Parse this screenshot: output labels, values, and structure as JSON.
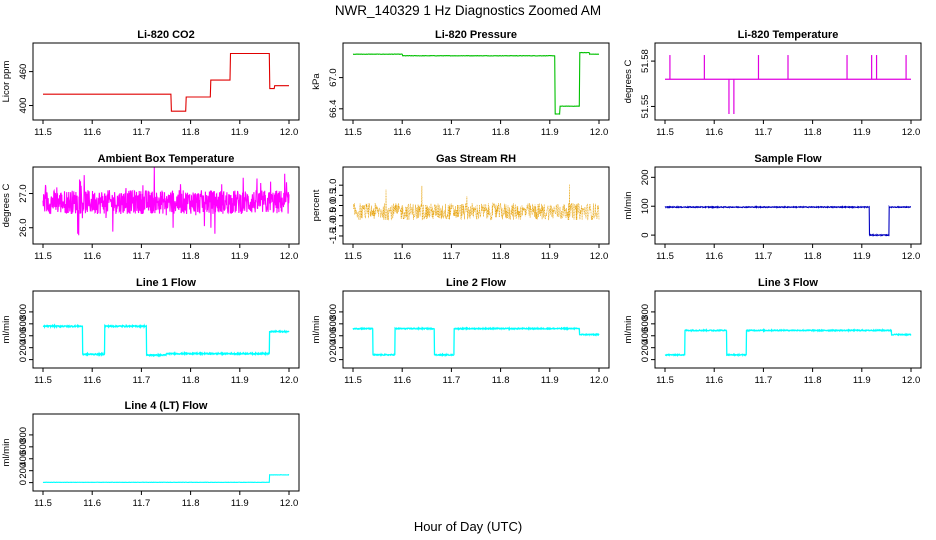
{
  "title": "NWR_140329  1 Hz Diagnostics Zoomed AM",
  "xlabel": "Hour of Day (UTC)",
  "chart_data": [
    {
      "type": "line",
      "title": "Li-820 CO2",
      "ylabel": "Licor ppm",
      "color": "#e00000",
      "noise": 0.002,
      "xlim": [
        11.5,
        12.0
      ],
      "ylim": [
        385,
        500
      ],
      "xticks": [
        "11.5",
        "11.6",
        "11.7",
        "11.8",
        "11.9",
        "12.0"
      ],
      "xtick_values": [
        11.5,
        11.6,
        11.7,
        11.8,
        11.9,
        12.0
      ],
      "yticks": [
        "400",
        "460"
      ],
      "ytick_values": [
        400,
        460
      ],
      "segments": [
        [
          11.5,
          11.76,
          420
        ],
        [
          11.76,
          11.79,
          390
        ],
        [
          11.79,
          11.84,
          415
        ],
        [
          11.84,
          11.88,
          445
        ],
        [
          11.88,
          11.96,
          492
        ],
        [
          11.96,
          11.97,
          430
        ],
        [
          11.97,
          12.0,
          435
        ]
      ]
    },
    {
      "type": "line",
      "title": "Li-820 Pressure",
      "ylabel": "kPa",
      "color": "#00c000",
      "noise": 0.003,
      "xlim": [
        11.5,
        12.0
      ],
      "ylim": [
        66.3,
        67.55
      ],
      "xticks": [
        "11.5",
        "11.6",
        "11.7",
        "11.8",
        "11.9",
        "12.0"
      ],
      "xtick_values": [
        11.5,
        11.6,
        11.7,
        11.8,
        11.9,
        12.0
      ],
      "yticks": [
        "66.4",
        "67.0"
      ],
      "ytick_values": [
        66.4,
        67.0
      ],
      "segments": [
        [
          11.5,
          11.6,
          67.45
        ],
        [
          11.6,
          11.91,
          67.42
        ],
        [
          11.91,
          11.92,
          66.3
        ],
        [
          11.92,
          11.96,
          66.45
        ],
        [
          11.96,
          11.98,
          67.48
        ],
        [
          11.98,
          12.0,
          67.45
        ]
      ]
    },
    {
      "type": "line",
      "title": "Li-820 Temperature",
      "ylabel": "degrees C",
      "color": "#e000e0",
      "noise": 0,
      "xlim": [
        11.5,
        12.0
      ],
      "ylim": [
        51.545,
        51.588
      ],
      "xticks": [
        "11.5",
        "11.6",
        "11.7",
        "11.8",
        "11.9",
        "12.0"
      ],
      "xtick_values": [
        11.5,
        11.6,
        11.7,
        11.8,
        11.9,
        12.0
      ],
      "yticks": [
        "51.55",
        "51.58"
      ],
      "ytick_values": [
        51.55,
        51.58
      ],
      "baseline": 51.568,
      "spikes": [
        [
          11.51,
          51.584
        ],
        [
          11.58,
          51.584
        ],
        [
          11.63,
          51.545
        ],
        [
          11.64,
          51.545
        ],
        [
          11.69,
          51.584
        ],
        [
          11.75,
          51.584
        ],
        [
          11.87,
          51.584
        ],
        [
          11.92,
          51.584
        ],
        [
          11.93,
          51.584
        ],
        [
          11.99,
          51.584
        ]
      ]
    },
    {
      "type": "line",
      "title": "Ambient Box Temperature",
      "ylabel": "degrees C",
      "color": "#ff00ff",
      "noise": 0.35,
      "xlim": [
        11.5,
        12.0
      ],
      "ylim": [
        25.7,
        27.6
      ],
      "xticks": [
        "11.5",
        "11.6",
        "11.7",
        "11.8",
        "11.9",
        "12.0"
      ],
      "xtick_values": [
        11.5,
        11.6,
        11.7,
        11.8,
        11.9,
        12.0
      ],
      "yticks": [
        "26.0",
        "27.0"
      ],
      "ytick_values": [
        26.0,
        27.0
      ],
      "segments": [
        [
          11.5,
          12.0,
          26.75
        ]
      ]
    },
    {
      "type": "scatter",
      "title": "Gas Stream RH",
      "ylabel": "percent",
      "color": "#e69f00",
      "noise": 0.42,
      "xlim": [
        11.5,
        12.0
      ],
      "ylim": [
        -1.6,
        1.6
      ],
      "xticks": [
        "11.5",
        "11.6",
        "11.7",
        "11.8",
        "11.9",
        "12.0"
      ],
      "xtick_values": [
        11.5,
        11.6,
        11.7,
        11.8,
        11.9,
        12.0
      ],
      "yticks": [
        "-1.5",
        "-1.0",
        "-0.5",
        "0.0",
        "0.5",
        "1.0"
      ],
      "ytick_values": [
        -1.5,
        -1.0,
        -0.5,
        0.0,
        0.5,
        1.0
      ],
      "segments": [
        [
          11.5,
          12.0,
          -0.3
        ]
      ]
    },
    {
      "type": "line",
      "title": "Sample Flow",
      "ylabel": "ml/min",
      "color": "#0000c0",
      "noise": 1.5,
      "xlim": [
        11.5,
        12.0
      ],
      "ylim": [
        -10,
        215
      ],
      "xticks": [
        "11.5",
        "11.6",
        "11.7",
        "11.8",
        "11.9",
        "12.0"
      ],
      "xtick_values": [
        11.5,
        11.6,
        11.7,
        11.8,
        11.9,
        12.0
      ],
      "yticks": [
        "0",
        "100",
        "200"
      ],
      "ytick_values": [
        0,
        100,
        200
      ],
      "segments": [
        [
          11.5,
          11.915,
          97
        ],
        [
          11.915,
          11.955,
          0
        ],
        [
          11.955,
          12.0,
          97
        ]
      ]
    },
    {
      "type": "line",
      "title": "Line 1 Flow",
      "ylabel": "ml/min",
      "color": "#00ffff",
      "noise": 10,
      "xlim": [
        11.5,
        12.0
      ],
      "ylim": [
        -40,
        1050
      ],
      "xticks": [
        "11.5",
        "11.6",
        "11.7",
        "11.8",
        "11.9",
        "12.0"
      ],
      "xtick_values": [
        11.5,
        11.6,
        11.7,
        11.8,
        11.9,
        12.0
      ],
      "yticks": [
        "0",
        "200",
        "400",
        "600",
        "800"
      ],
      "ytick_values": [
        0,
        200,
        400,
        600,
        800
      ],
      "segments": [
        [
          11.5,
          11.58,
          560
        ],
        [
          11.58,
          11.625,
          90
        ],
        [
          11.625,
          11.71,
          560
        ],
        [
          11.71,
          11.75,
          75
        ],
        [
          11.75,
          11.96,
          100
        ],
        [
          11.96,
          12.0,
          470
        ]
      ]
    },
    {
      "type": "line",
      "title": "Line 2 Flow",
      "ylabel": "ml/min",
      "color": "#00ffff",
      "noise": 8,
      "xlim": [
        11.5,
        12.0
      ],
      "ylim": [
        -40,
        1050
      ],
      "xticks": [
        "11.5",
        "11.6",
        "11.7",
        "11.8",
        "11.9",
        "12.0"
      ],
      "xtick_values": [
        11.5,
        11.6,
        11.7,
        11.8,
        11.9,
        12.0
      ],
      "yticks": [
        "0",
        "200",
        "400",
        "600",
        "800"
      ],
      "ytick_values": [
        0,
        200,
        400,
        600,
        800
      ],
      "segments": [
        [
          11.5,
          11.54,
          520
        ],
        [
          11.54,
          11.585,
          80
        ],
        [
          11.585,
          11.665,
          520
        ],
        [
          11.665,
          11.705,
          80
        ],
        [
          11.705,
          11.96,
          520
        ],
        [
          11.96,
          12.0,
          420
        ]
      ]
    },
    {
      "type": "line",
      "title": "Line 3 Flow",
      "ylabel": "ml/min",
      "color": "#00ffff",
      "noise": 8,
      "xlim": [
        11.5,
        12.0
      ],
      "ylim": [
        -40,
        1050
      ],
      "xticks": [
        "11.5",
        "11.6",
        "11.7",
        "11.8",
        "11.9",
        "12.0"
      ],
      "xtick_values": [
        11.5,
        11.6,
        11.7,
        11.8,
        11.9,
        12.0
      ],
      "yticks": [
        "0",
        "200",
        "400",
        "600",
        "800"
      ],
      "ytick_values": [
        0,
        200,
        400,
        600,
        800
      ],
      "segments": [
        [
          11.5,
          11.54,
          80
        ],
        [
          11.54,
          11.625,
          490
        ],
        [
          11.625,
          11.665,
          80
        ],
        [
          11.665,
          11.96,
          490
        ],
        [
          11.96,
          12.0,
          420
        ]
      ]
    },
    {
      "type": "line",
      "title": "Line 4 (LT) Flow",
      "ylabel": "ml/min",
      "color": "#00ffff",
      "noise": 2,
      "xlim": [
        11.5,
        12.0
      ],
      "ylim": [
        -40,
        1050
      ],
      "xticks": [
        "11.5",
        "11.6",
        "11.7",
        "11.8",
        "11.9",
        "12.0"
      ],
      "xtick_values": [
        11.5,
        11.6,
        11.7,
        11.8,
        11.9,
        12.0
      ],
      "yticks": [
        "0",
        "200",
        "400",
        "600",
        "800"
      ],
      "ytick_values": [
        0,
        200,
        400,
        600,
        800
      ],
      "segments": [
        [
          11.5,
          11.96,
          5
        ],
        [
          11.96,
          12.0,
          130
        ]
      ]
    }
  ]
}
